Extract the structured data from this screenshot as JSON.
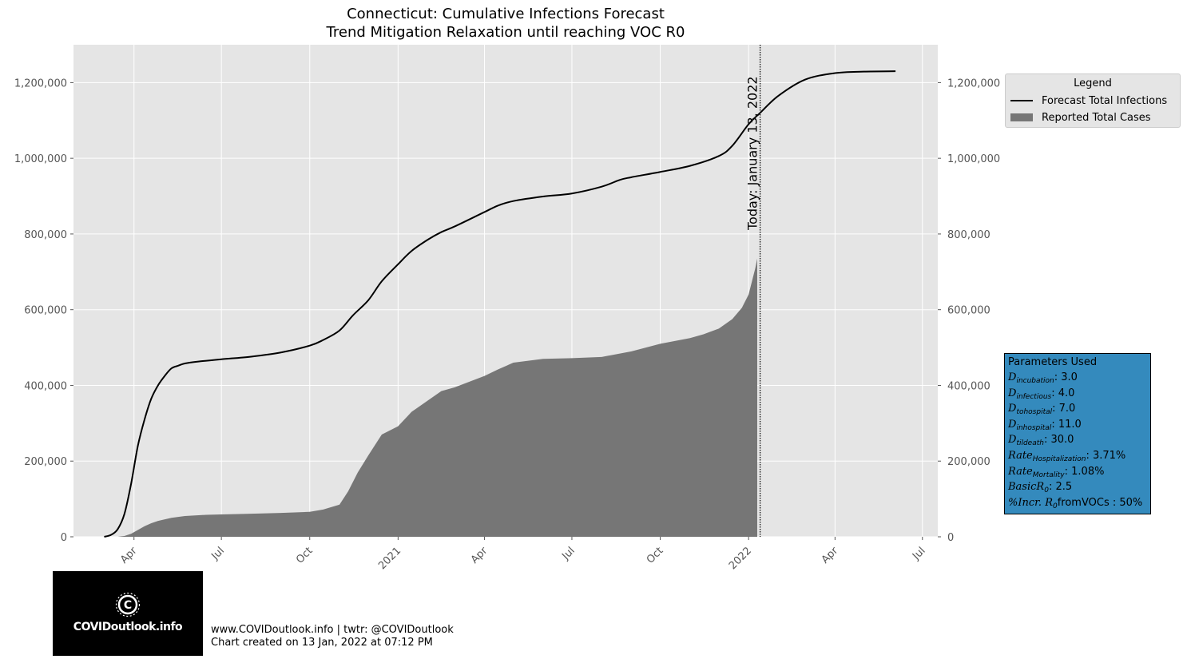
{
  "chart_data": {
    "type": "line",
    "title": "Connecticut: Cumulative Infections Forecast",
    "subtitle": "Trend Mitigation Relaxation until reaching VOC R0",
    "xlabel": "",
    "ylabel": "",
    "ylim": [
      0,
      1300000
    ],
    "xlim": [
      "2020-01-29",
      "2022-07-17"
    ],
    "grid": true,
    "y_ticks": [
      "0",
      "200,000",
      "400,000",
      "600,000",
      "800,000",
      "1,000,000",
      "1,200,000"
    ],
    "y_tick_values": [
      0,
      200000,
      400000,
      600000,
      800000,
      1000000,
      1200000
    ],
    "x_ticks": [
      "Apr",
      "Jul",
      "Oct",
      "2021",
      "Apr",
      "Jul",
      "Oct",
      "2022",
      "Apr",
      "Jul"
    ],
    "x_tick_dates": [
      "2020-04-01",
      "2020-07-01",
      "2020-10-01",
      "2021-01-01",
      "2021-04-01",
      "2021-07-01",
      "2021-10-01",
      "2022-01-01",
      "2022-04-01",
      "2022-07-01"
    ],
    "today_label": "Today: January 13, 2022",
    "today_date": "2022-01-13",
    "legend": {
      "title": "Legend",
      "placement": "top-right outside"
    },
    "series": [
      {
        "name": "Forecast Total Infections",
        "type": "line",
        "color": "#000000",
        "x": [
          "2020-03-01",
          "2020-03-08",
          "2020-03-15",
          "2020-03-22",
          "2020-03-29",
          "2020-04-05",
          "2020-04-12",
          "2020-04-19",
          "2020-04-26",
          "2020-05-03",
          "2020-05-10",
          "2020-05-17",
          "2020-05-24",
          "2020-06-07",
          "2020-07-01",
          "2020-08-01",
          "2020-09-01",
          "2020-10-01",
          "2020-10-15",
          "2020-11-01",
          "2020-11-15",
          "2020-12-01",
          "2020-12-15",
          "2021-01-01",
          "2021-01-15",
          "2021-02-01",
          "2021-02-15",
          "2021-03-01",
          "2021-04-01",
          "2021-04-15",
          "2021-05-01",
          "2021-06-01",
          "2021-07-01",
          "2021-08-01",
          "2021-08-20",
          "2021-09-01",
          "2021-10-01",
          "2021-11-01",
          "2021-12-01",
          "2021-12-15",
          "2022-01-01",
          "2022-01-13",
          "2022-02-01",
          "2022-03-01",
          "2022-04-01",
          "2022-05-01",
          "2022-06-03"
        ],
        "y": [
          0,
          5000,
          20000,
          60000,
          140000,
          240000,
          310000,
          365000,
          400000,
          425000,
          445000,
          452000,
          458000,
          463000,
          469000,
          476000,
          487000,
          505000,
          520000,
          545000,
          585000,
          625000,
          675000,
          720000,
          755000,
          785000,
          805000,
          820000,
          858000,
          875000,
          887000,
          899000,
          907000,
          925000,
          943000,
          950000,
          964000,
          980000,
          1006000,
          1033000,
          1090000,
          1120000,
          1165000,
          1208000,
          1225000,
          1229000,
          1230000
        ]
      },
      {
        "name": "Reported Total Cases",
        "type": "area",
        "color": "#767676",
        "x": [
          "2020-03-15",
          "2020-03-22",
          "2020-03-29",
          "2020-04-05",
          "2020-04-12",
          "2020-04-19",
          "2020-04-26",
          "2020-05-10",
          "2020-05-24",
          "2020-06-15",
          "2020-07-01",
          "2020-08-01",
          "2020-09-01",
          "2020-10-01",
          "2020-10-15",
          "2020-11-01",
          "2020-11-10",
          "2020-11-20",
          "2020-12-01",
          "2020-12-15",
          "2021-01-01",
          "2021-01-15",
          "2021-02-01",
          "2021-02-15",
          "2021-03-01",
          "2021-04-01",
          "2021-04-15",
          "2021-05-01",
          "2021-06-01",
          "2021-07-01",
          "2021-08-01",
          "2021-09-01",
          "2021-10-01",
          "2021-11-01",
          "2021-11-15",
          "2021-12-01",
          "2021-12-15",
          "2021-12-25",
          "2022-01-01",
          "2022-01-08",
          "2022-01-10"
        ],
        "y": [
          0,
          2000,
          8000,
          18000,
          28000,
          36000,
          42000,
          50000,
          55000,
          58000,
          59000,
          61000,
          63000,
          66000,
          72000,
          85000,
          120000,
          170000,
          215000,
          270000,
          292000,
          330000,
          360000,
          385000,
          395000,
          425000,
          442000,
          460000,
          470000,
          472000,
          475000,
          490000,
          510000,
          525000,
          535000,
          550000,
          575000,
          605000,
          640000,
          710000,
          735000
        ]
      }
    ]
  },
  "parameters": {
    "title": "Parameters Used",
    "rows": [
      {
        "name": "D",
        "sub": "incubation",
        "value": ": 3.0"
      },
      {
        "name": "D",
        "sub": "infectious",
        "value": ": 4.0"
      },
      {
        "name": "D",
        "sub": "tohospital",
        "value": ": 7.0"
      },
      {
        "name": "D",
        "sub": "inhospital",
        "value": ": 11.0"
      },
      {
        "name": "D",
        "sub": "tildeath",
        "value": ": 30.0"
      },
      {
        "name": "Rate",
        "sub": "Hospitalization",
        "value": ": 3.71%"
      },
      {
        "name": "Rate",
        "sub": "Mortality",
        "value": ": 1.08%"
      },
      {
        "name": "BasicR",
        "sub": "0",
        "value": ": 2.5"
      },
      {
        "name": "%Incr. R",
        "sub": "0",
        "value": "fromVOCs : 50%"
      }
    ]
  },
  "branding": {
    "logo_text": "COVIDoutlook.info",
    "footer_line1": "www.COVIDoutlook.info | twtr: @COVIDoutlook",
    "footer_line2": "Chart created on 13 Jan, 2022 at 07:12 PM"
  },
  "colors": {
    "plot_background": "#e5e5e5",
    "grid": "#ffffff",
    "forecast_line": "#000000",
    "reported_fill": "#767676",
    "params_box": "#348ABD",
    "logo_background": "#000000"
  }
}
